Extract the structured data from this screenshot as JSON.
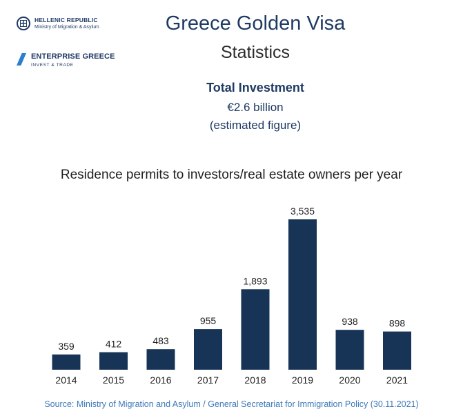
{
  "logos": {
    "hellenic_republic": {
      "title": "HELLENIC REPUBLIC",
      "subtitle": "Ministry of Migration & Asylum"
    },
    "enterprise_greece": {
      "title": "ENTERPRISE GREECE",
      "subtitle": "INVEST & TRADE"
    }
  },
  "header": {
    "title": "Greece Golden Visa",
    "subtitle": "Statistics"
  },
  "investment": {
    "label": "Total Investment",
    "value": "€2.6 billion",
    "note": "(estimated figure)"
  },
  "chart_data": {
    "type": "bar",
    "title": "Residence permits to investors/real estate owners per year",
    "xlabel": "",
    "ylabel": "",
    "categories": [
      "2014",
      "2015",
      "2016",
      "2017",
      "2018",
      "2019",
      "2020",
      "2021"
    ],
    "values": [
      359,
      412,
      483,
      955,
      1893,
      3535,
      938,
      898
    ],
    "value_labels": [
      "359",
      "412",
      "483",
      "955",
      "1,893",
      "3,535",
      "938",
      "898"
    ],
    "ylim": [
      0,
      3535
    ],
    "grid": false,
    "bar_color": "#173457"
  },
  "source": "Source: Ministry of Migration and Asylum / General Secretariat for Immigration Policy (30.11.2021)"
}
